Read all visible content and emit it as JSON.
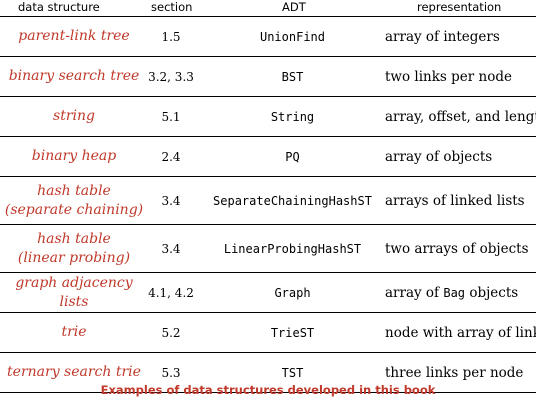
{
  "table": {
    "headers": {
      "data_structure": "data structure",
      "section": "section",
      "adt": "ADT",
      "representation": "representation"
    },
    "rows": [
      {
        "name_line1": "parent-link tree",
        "name_line2": "",
        "section": "1.5",
        "adt": "UnionFind",
        "rep": "array of integers"
      },
      {
        "name_line1": "binary search tree",
        "name_line2": "",
        "section": "3.2, 3.3",
        "adt": "BST",
        "rep": "two links per node"
      },
      {
        "name_line1": "string",
        "name_line2": "",
        "section": "5.1",
        "adt": "String",
        "rep": "array, offset, and length"
      },
      {
        "name_line1": "binary heap",
        "name_line2": "",
        "section": "2.4",
        "adt": "PQ",
        "rep": "array of objects"
      },
      {
        "name_line1": "hash table",
        "name_line2": "(separate chaining)",
        "section": "3.4",
        "adt": "SeparateChainingHashST",
        "rep": "arrays of linked lists"
      },
      {
        "name_line1": "hash table",
        "name_line2": "(linear probing)",
        "section": "3.4",
        "adt": "LinearProbingHashST",
        "rep": "two arrays of objects"
      },
      {
        "name_line1": "graph adjacency lists",
        "name_line2": "",
        "section": "4.1, 4.2",
        "adt": "Graph",
        "rep_pre": "array of ",
        "rep_code": "Bag",
        "rep_post": " objects"
      },
      {
        "name_line1": "trie",
        "name_line2": "",
        "section": "5.2",
        "adt": "TrieST",
        "rep": "node with array of links"
      },
      {
        "name_line1": "ternary search trie",
        "name_line2": "",
        "section": "5.3",
        "adt": "TST",
        "rep": "three links per node"
      }
    ]
  },
  "caption": "Examples of data structures developed in this book",
  "colors": {
    "accent": "#c0392b",
    "text": "#000000",
    "rule": "#000000"
  }
}
